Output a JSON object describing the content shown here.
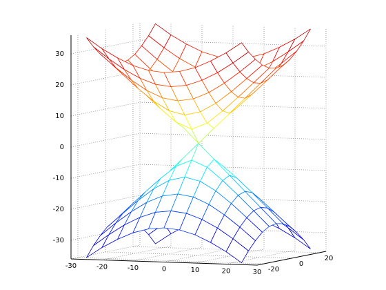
{
  "chart_data": {
    "type": "mesh",
    "colormap": "jet",
    "grid": true,
    "xlim": [
      -30,
      30
    ],
    "ylim": [
      -25,
      25
    ],
    "zlim": [
      -36,
      36
    ],
    "xticks": [
      -30,
      -20,
      -10,
      0,
      10,
      20,
      30
    ],
    "yticks": [
      -20,
      0,
      20
    ],
    "zticks": [
      -30,
      -20,
      -10,
      0,
      10,
      20,
      30
    ],
    "x": [
      -25,
      -20,
      -15,
      -10,
      -5,
      0,
      5,
      10,
      15,
      20,
      25
    ],
    "y": [
      -25,
      -20,
      -15,
      -10,
      -5,
      0,
      5,
      10,
      15,
      20,
      25
    ],
    "series": [
      {
        "z": [
          [
            35.4,
            32,
            29.2,
            26.9,
            25.5,
            25,
            25.5,
            26.9,
            29.2,
            32,
            35.4
          ],
          [
            32,
            28.3,
            25,
            22.4,
            20.6,
            20,
            20.6,
            22.4,
            25,
            28.3,
            32
          ],
          [
            29.2,
            25,
            21.2,
            18,
            15.8,
            15,
            15.8,
            18,
            21.2,
            25,
            29.2
          ],
          [
            26.9,
            22.4,
            18,
            14.1,
            11.2,
            10,
            11.2,
            14.1,
            18,
            22.4,
            26.9
          ],
          [
            25.5,
            20.6,
            15.8,
            11.2,
            7.1,
            5,
            7.1,
            11.2,
            15.8,
            20.6,
            25.5
          ],
          [
            25,
            20,
            15,
            10,
            5,
            0,
            5,
            10,
            15,
            20,
            25
          ],
          [
            25.5,
            20.6,
            15.8,
            11.2,
            7.1,
            5,
            7.1,
            11.2,
            15.8,
            20.6,
            25.5
          ],
          [
            26.9,
            22.4,
            18,
            14.1,
            11.2,
            10,
            11.2,
            14.1,
            18,
            22.4,
            26.9
          ],
          [
            29.2,
            25,
            21.2,
            18,
            15.8,
            15,
            15.8,
            18,
            21.2,
            25,
            29.2
          ],
          [
            32,
            28.3,
            25,
            22.4,
            20.6,
            20,
            20.6,
            22.4,
            25,
            28.3,
            32
          ],
          [
            35.4,
            32,
            29.2,
            26.9,
            25.5,
            25,
            25.5,
            26.9,
            29.2,
            32,
            35.4
          ]
        ]
      },
      {
        "z": [
          [
            -35.4,
            -32,
            -29.2,
            -26.9,
            -25.5,
            -25,
            -25.5,
            -26.9,
            -29.2,
            -32,
            -35.4
          ],
          [
            -32,
            -28.3,
            -25,
            -22.4,
            -20.6,
            -20,
            -20.6,
            -22.4,
            -25,
            -28.3,
            -32
          ],
          [
            -29.2,
            -25,
            -21.2,
            -18,
            -15.8,
            -15,
            -15.8,
            -18,
            -21.2,
            -25,
            -29.2
          ],
          [
            -26.9,
            -22.4,
            -18,
            -14.1,
            -11.2,
            -10,
            -11.2,
            -14.1,
            -18,
            -22.4,
            -26.9
          ],
          [
            -25.5,
            -20.6,
            -15.8,
            -11.2,
            -7.1,
            -5,
            -7.1,
            -11.2,
            -15.8,
            -20.6,
            -25.5
          ],
          [
            -25,
            -20,
            -15,
            -10,
            -5,
            0,
            -5,
            -10,
            -15,
            -20,
            -25
          ],
          [
            -25.5,
            -20.6,
            -15.8,
            -11.2,
            -7.1,
            -5,
            -7.1,
            -11.2,
            -15.8,
            -20.6,
            -25.5
          ],
          [
            -26.9,
            -22.4,
            -18,
            -14.1,
            -11.2,
            -10,
            -11.2,
            -14.1,
            -18,
            -22.4,
            -26.9
          ],
          [
            -29.2,
            -25,
            -21.2,
            -18,
            -15.8,
            -15,
            -15.8,
            -18,
            -21.2,
            -25,
            -29.2
          ],
          [
            -32,
            -28.3,
            -25,
            -22.4,
            -20.6,
            -20,
            -20.6,
            -22.4,
            -25,
            -28.3,
            -32
          ],
          [
            -35.4,
            -32,
            -29.2,
            -26.9,
            -25.5,
            -25,
            -25.5,
            -26.9,
            -29.2,
            -32,
            -35.4
          ]
        ]
      }
    ]
  }
}
